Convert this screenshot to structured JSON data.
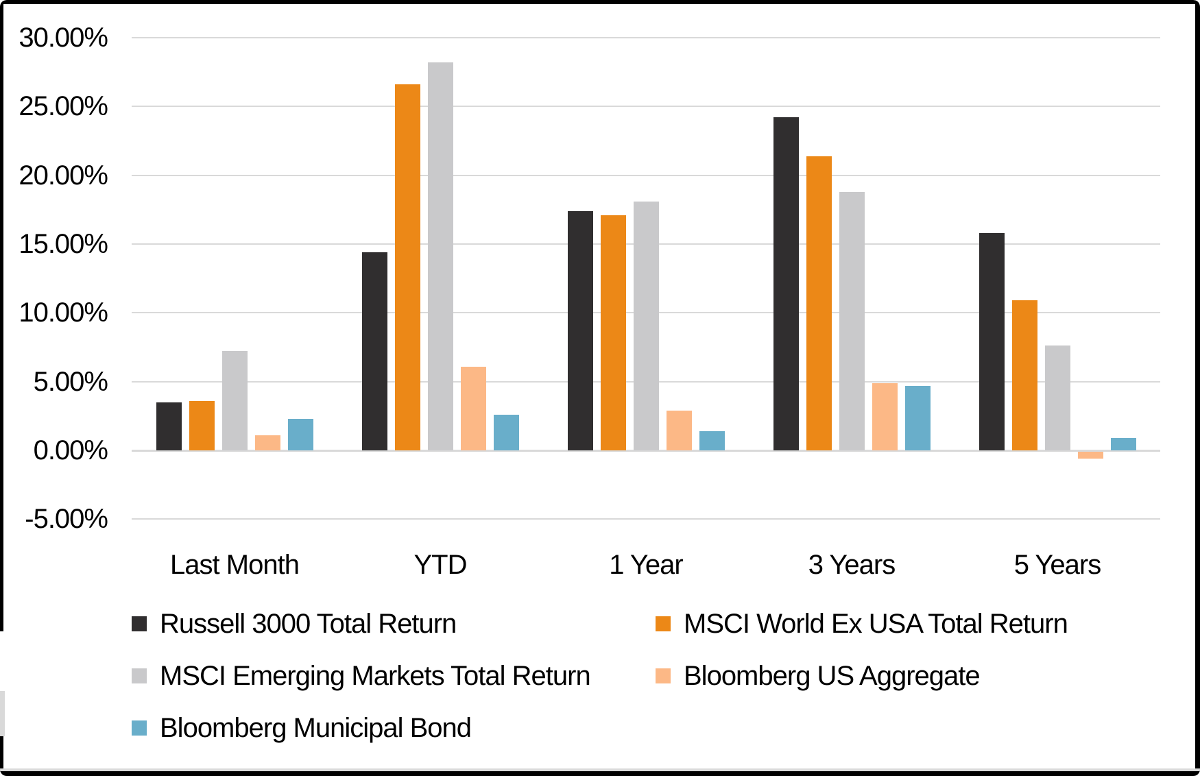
{
  "chart_data": {
    "type": "bar",
    "title": "",
    "xlabel": "",
    "ylabel": "",
    "categories": [
      "Last Month",
      "YTD",
      "1 Year",
      "3 Years",
      "5 Years"
    ],
    "series": [
      {
        "name": "Russell 3000 Total Return",
        "color": "#302E2F",
        "values": [
          3.5,
          14.4,
          17.4,
          24.2,
          15.8
        ]
      },
      {
        "name": "MSCI World Ex USA Total Return",
        "color": "#EC8817",
        "values": [
          3.6,
          26.6,
          17.1,
          21.4,
          10.9
        ]
      },
      {
        "name": "MSCI Emerging Markets Total Return",
        "color": "#C9C9CB",
        "values": [
          7.2,
          28.2,
          18.1,
          18.8,
          7.6
        ]
      },
      {
        "name": "Bloomberg US Aggregate",
        "color": "#FCB886",
        "values": [
          1.1,
          6.1,
          2.9,
          4.9,
          -0.5
        ]
      },
      {
        "name": "Bloomberg Municipal Bond",
        "color": "#69AECA",
        "values": [
          2.3,
          2.6,
          1.4,
          4.7,
          0.9
        ]
      }
    ],
    "y_axis": {
      "min": -5,
      "max": 30,
      "step": 5,
      "tick_labels": [
        "30.00%",
        "25.00%",
        "20.00%",
        "15.00%",
        "10.00%",
        "5.00%",
        "0.00%",
        "-5.00%"
      ]
    },
    "grid": true,
    "legend_position": "bottom",
    "colors": {
      "gridline": "#D9D9D9",
      "axis_text": "#000000",
      "frame_border": "#000000",
      "bottom_strip": "#DBDBDB"
    }
  }
}
